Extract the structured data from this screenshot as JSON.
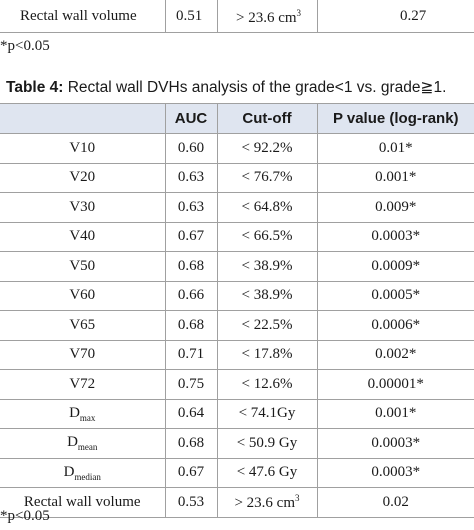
{
  "table3_last_row": {
    "parameter": "Rectal wall volume",
    "auc": "0.51",
    "cutoff": "> 23.6 cm",
    "cutoff_sup": "3",
    "p_value": "0.27"
  },
  "footnote_top": "*p<0.05",
  "table4": {
    "caption_label": "Table 4:",
    "caption_text": " Rectal wall DVHs analysis of the grade<1 vs. grade≧1.",
    "headers": [
      "",
      "AUC",
      "Cut-off",
      "P value (log-rank)"
    ],
    "rows": [
      {
        "param": "V10",
        "sub": "",
        "auc": "0.60",
        "cutoff": "< 92.2%",
        "sup": "",
        "p": "0.01*"
      },
      {
        "param": "V20",
        "sub": "",
        "auc": "0.63",
        "cutoff": "< 76.7%",
        "sup": "",
        "p": "0.001*"
      },
      {
        "param": "V30",
        "sub": "",
        "auc": "0.63",
        "cutoff": "< 64.8%",
        "sup": "",
        "p": "0.009*"
      },
      {
        "param": "V40",
        "sub": "",
        "auc": "0.67",
        "cutoff": "< 66.5%",
        "sup": "",
        "p": "0.0003*"
      },
      {
        "param": "V50",
        "sub": "",
        "auc": "0.68",
        "cutoff": "< 38.9%",
        "sup": "",
        "p": "0.0009*"
      },
      {
        "param": "V60",
        "sub": "",
        "auc": "0.66",
        "cutoff": "< 38.9%",
        "sup": "",
        "p": "0.0005*"
      },
      {
        "param": "V65",
        "sub": "",
        "auc": "0.68",
        "cutoff": "< 22.5%",
        "sup": "",
        "p": "0.0006*"
      },
      {
        "param": "V70",
        "sub": "",
        "auc": "0.71",
        "cutoff": "< 17.8%",
        "sup": "",
        "p": "0.002*"
      },
      {
        "param": "V72",
        "sub": "",
        "auc": "0.75",
        "cutoff": "< 12.6%",
        "sup": "",
        "p": "0.00001*"
      },
      {
        "param": "D",
        "sub": "max",
        "auc": "0.64",
        "cutoff": "< 74.1Gy",
        "sup": "",
        "p": "0.001*"
      },
      {
        "param": "D",
        "sub": "mean",
        "auc": "0.68",
        "cutoff": "< 50.9 Gy",
        "sup": "",
        "p": "0.0003*"
      },
      {
        "param": "D",
        "sub": "median",
        "auc": "0.67",
        "cutoff": "< 47.6 Gy",
        "sup": "",
        "p": "0.0003*"
      },
      {
        "param": "Rectal wall volume",
        "sub": "",
        "auc": "0.53",
        "cutoff": "> 23.6 cm",
        "sup": "3",
        "p": "0.02"
      }
    ]
  },
  "footnote_bottom": "*p<0.05"
}
